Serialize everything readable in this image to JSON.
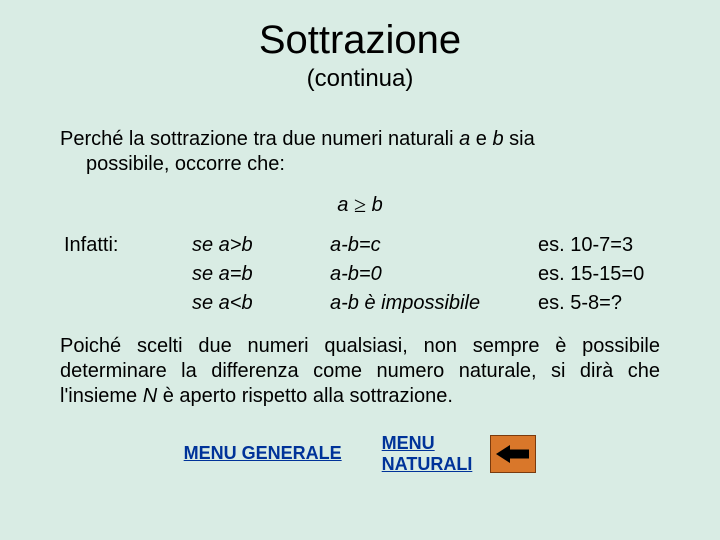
{
  "colors": {
    "background": "#d9ece4",
    "text": "#000000",
    "link": "#003399",
    "arrow_button_fill": "#d9772a",
    "arrow_button_border": "#7a3b0e",
    "arrow_icon": "#000000"
  },
  "typography": {
    "family": "Arial",
    "title_size_pt": 40,
    "subtitle_size_pt": 24,
    "body_size_pt": 20,
    "nav_size_pt": 18,
    "nav_weight": "bold"
  },
  "title": "Sottrazione",
  "subtitle": "(continua)",
  "intro": {
    "part1": "Perché la sottrazione tra due numeri naturali ",
    "a": "a",
    "part2": " e ",
    "b": "b",
    "part3": " sia",
    "line2": "possibile, occorre che:"
  },
  "condition": {
    "lhs": "a ",
    "op": "≥",
    "rhs": " b"
  },
  "table": {
    "label": "Infatti:",
    "rows": [
      {
        "cond": "se a>b",
        "eq": "a-b=c",
        "ex": "es. 10-7=3"
      },
      {
        "cond": "se a=b",
        "eq": "a-b=0",
        "ex": "es. 15-15=0"
      },
      {
        "cond": "se a<b",
        "eq": "a-b è impossibile",
        "ex": "es.  5-8=?"
      }
    ]
  },
  "closing": {
    "p1": "Poiché scelti due numeri qualsiasi, non sempre è possibile determinare la differenza come numero naturale, si dirà che l'insieme ",
    "N": "N",
    "p2": " è aperto rispetto alla sottrazione."
  },
  "nav": {
    "menu_generale": "MENU GENERALE",
    "menu_naturali_l1": "MENU",
    "menu_naturali_l2": "NATURALI"
  }
}
